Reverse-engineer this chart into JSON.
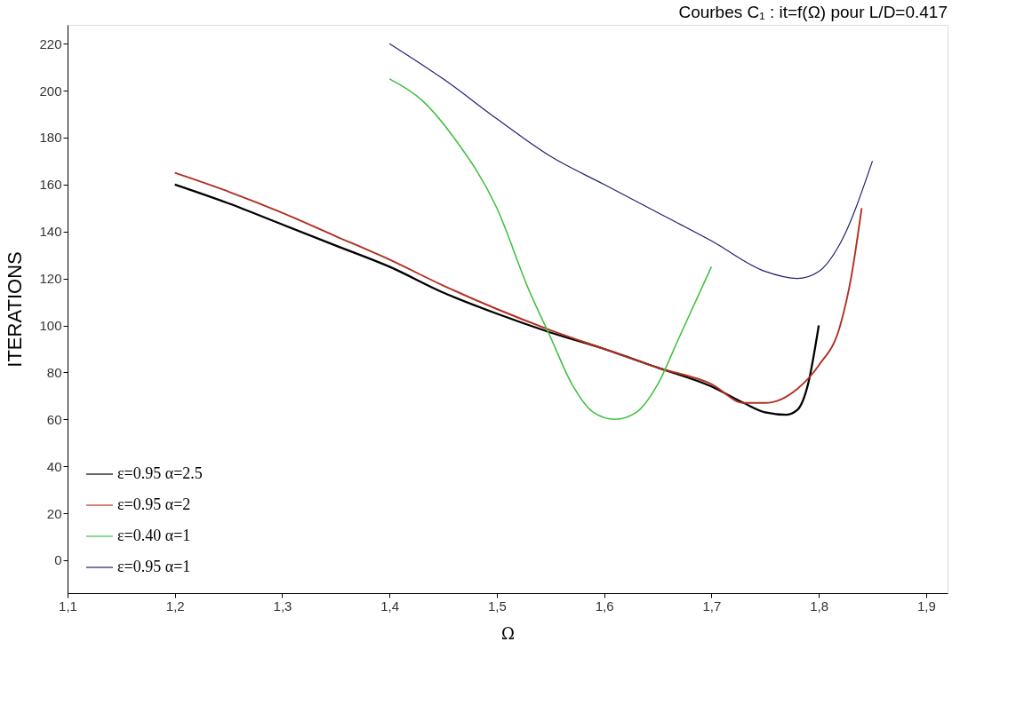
{
  "chart_data": {
    "type": "line",
    "title": "Courbes  C₁ :  it=f(Ω) pour L/D=0.417",
    "xlabel": "Ω",
    "ylabel": "ITERATIONS",
    "xlim": [
      1.1,
      1.92
    ],
    "xticks": [
      {
        "value": 1.1,
        "label": "1,1"
      },
      {
        "value": 1.2,
        "label": "1,2"
      },
      {
        "value": 1.3,
        "label": "1,3"
      },
      {
        "value": 1.4,
        "label": "1,4"
      },
      {
        "value": 1.5,
        "label": "1,5"
      },
      {
        "value": 1.6,
        "label": "1,6"
      },
      {
        "value": 1.7,
        "label": "1,7"
      },
      {
        "value": 1.8,
        "label": "1,8"
      },
      {
        "value": 1.9,
        "label": "1,9"
      }
    ],
    "ylim": [
      -14,
      228
    ],
    "yticks": [
      0,
      20,
      40,
      60,
      80,
      100,
      120,
      140,
      160,
      180,
      200,
      220
    ],
    "grid": false,
    "legend": "bottom left",
    "marker": "none",
    "line_style": "solid",
    "series": [
      {
        "name": "ε=0.95   α=2.5",
        "color": "#000000",
        "x": [
          1.2,
          1.25,
          1.3,
          1.35,
          1.4,
          1.45,
          1.5,
          1.55,
          1.6,
          1.65,
          1.7,
          1.73,
          1.75,
          1.77,
          1.78,
          1.79,
          1.8
        ],
        "values": [
          160,
          152,
          143,
          134,
          125,
          114,
          105,
          97,
          90,
          82,
          74,
          67,
          63,
          62,
          64,
          75,
          100
        ]
      },
      {
        "name": "ε=0.95   α=2",
        "color": "#b03020",
        "x": [
          1.2,
          1.25,
          1.3,
          1.35,
          1.4,
          1.45,
          1.5,
          1.55,
          1.6,
          1.65,
          1.7,
          1.73,
          1.75,
          1.78,
          1.8,
          1.82,
          1.83,
          1.84
        ],
        "values": [
          165,
          157,
          148,
          138,
          128,
          117,
          107,
          98,
          90,
          82,
          75,
          67,
          67,
          73,
          83,
          100,
          120,
          150
        ]
      },
      {
        "name": "ε=0.40   α=1",
        "color": "#40c040",
        "x": [
          1.4,
          1.43,
          1.46,
          1.5,
          1.53,
          1.55,
          1.57,
          1.59,
          1.61,
          1.63,
          1.65,
          1.67,
          1.7
        ],
        "values": [
          205,
          196,
          180,
          150,
          115,
          95,
          75,
          63,
          60,
          63,
          75,
          95,
          125
        ]
      },
      {
        "name": "ε=0.95   α=1",
        "color": "#202070",
        "x": [
          1.4,
          1.45,
          1.5,
          1.55,
          1.6,
          1.65,
          1.7,
          1.75,
          1.78,
          1.8,
          1.82,
          1.85
        ],
        "values": [
          220,
          205,
          188,
          172,
          160,
          148,
          136,
          123,
          120,
          123,
          135,
          170
        ]
      }
    ]
  }
}
